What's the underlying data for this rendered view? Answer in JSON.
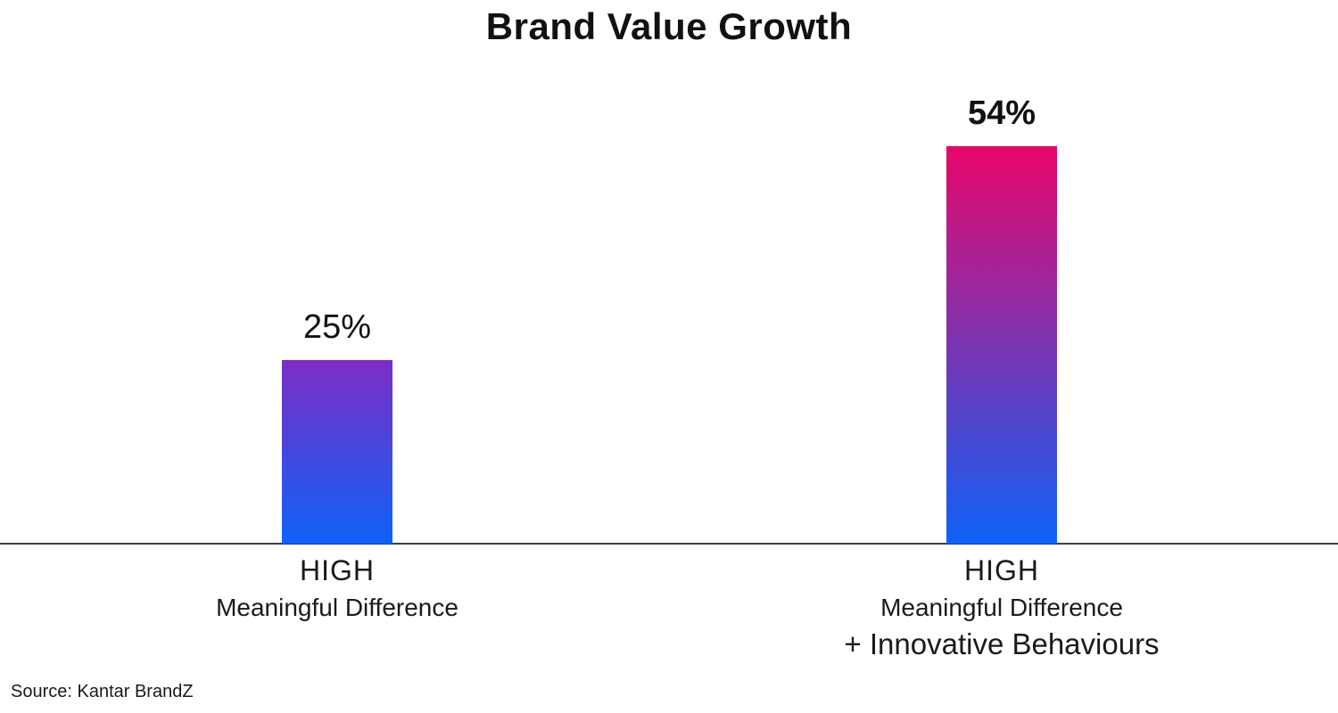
{
  "title": "Brand Value Growth",
  "source": "Source: Kantar BrandZ",
  "colors": {
    "axis": "#3d3d3d",
    "text": "#111111",
    "background": "#ffffff"
  },
  "chart_data": {
    "type": "bar",
    "title": "Brand Value Growth",
    "xlabel": "",
    "ylabel": "",
    "ylim": [
      0,
      60
    ],
    "grid": false,
    "legend": false,
    "categories": [
      "HIGH Meaningful Difference",
      "HIGH Meaningful Difference + Innovative Behaviours"
    ],
    "category_lines": [
      [
        "HIGH",
        "Meaningful Difference"
      ],
      [
        "HIGH",
        "Meaningful Difference",
        "+ Innovative Behaviours"
      ]
    ],
    "values": [
      25,
      54
    ],
    "value_labels": [
      "25%",
      "54%"
    ],
    "value_label_bold": [
      false,
      true
    ],
    "bar_gradients": [
      {
        "top": "#7c2ec5",
        "bottom": "#0e61f7"
      },
      {
        "top": "#e7076b",
        "bottom": "#0e61f7"
      }
    ],
    "source": "Source: Kantar BrandZ"
  }
}
